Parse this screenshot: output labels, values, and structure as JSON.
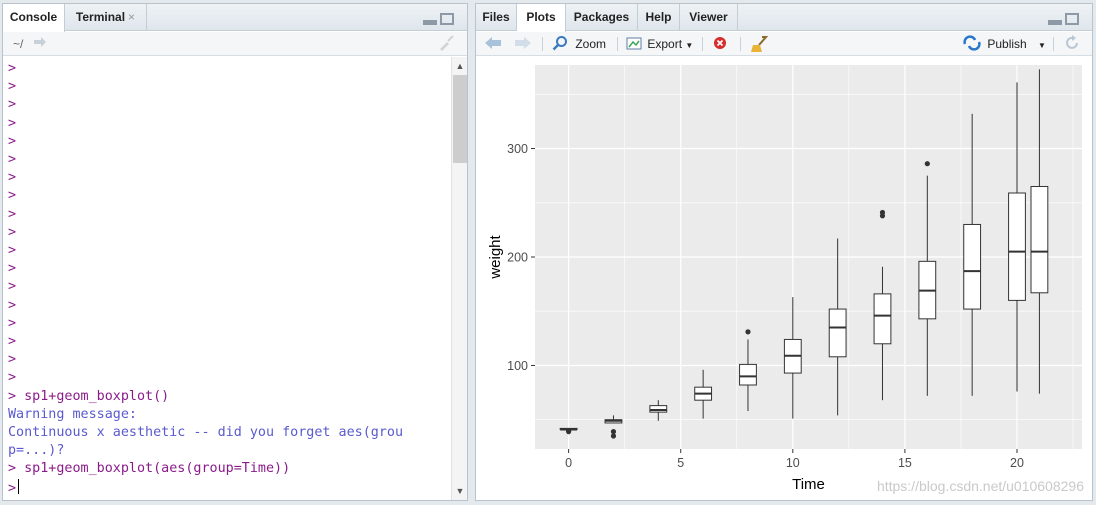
{
  "left_pane": {
    "tabs": [
      {
        "label": "Console"
      },
      {
        "label": "Terminal"
      }
    ],
    "path": "~/",
    "console_lines": [
      {
        "type": "prompt",
        "text": ">"
      },
      {
        "type": "prompt",
        "text": ">"
      },
      {
        "type": "prompt",
        "text": ">"
      },
      {
        "type": "prompt",
        "text": ">"
      },
      {
        "type": "prompt",
        "text": ">"
      },
      {
        "type": "prompt",
        "text": ">"
      },
      {
        "type": "prompt",
        "text": ">"
      },
      {
        "type": "prompt",
        "text": ">"
      },
      {
        "type": "prompt",
        "text": ">"
      },
      {
        "type": "prompt",
        "text": ">"
      },
      {
        "type": "prompt",
        "text": ">"
      },
      {
        "type": "prompt",
        "text": ">"
      },
      {
        "type": "prompt",
        "text": ">"
      },
      {
        "type": "prompt",
        "text": ">"
      },
      {
        "type": "prompt",
        "text": ">"
      },
      {
        "type": "prompt",
        "text": ">"
      },
      {
        "type": "prompt",
        "text": ">"
      },
      {
        "type": "prompt",
        "text": ">"
      },
      {
        "type": "cmd",
        "text": "> sp1+geom_boxplot()"
      },
      {
        "type": "warn",
        "text": "Warning message:"
      },
      {
        "type": "warn",
        "text": "Continuous x aesthetic -- did you forget aes(grou"
      },
      {
        "type": "warn",
        "text": "p=...)?"
      },
      {
        "type": "cmd",
        "text": "> sp1+geom_boxplot(aes(group=Time))"
      },
      {
        "type": "input",
        "text": ">"
      }
    ]
  },
  "right_pane": {
    "tabs": [
      {
        "label": "Files"
      },
      {
        "label": "Plots"
      },
      {
        "label": "Packages"
      },
      {
        "label": "Help"
      },
      {
        "label": "Viewer"
      }
    ],
    "toolbar": {
      "zoom_label": "Zoom",
      "export_label": "Export",
      "publish_label": "Publish"
    },
    "watermark": "https://blog.csdn.net/u010608296"
  },
  "colors": {
    "panel_bg": "#ebebeb",
    "grid": "#ffffff",
    "prompt": "#8a1c8a",
    "warning": "#5a5ad0"
  },
  "chart_data": {
    "type": "box",
    "xlabel": "Time",
    "ylabel": "weight",
    "xlim": [
      -1.5,
      22.9
    ],
    "ylim": [
      23,
      377
    ],
    "x_ticks": [
      0,
      5,
      10,
      15,
      20
    ],
    "y_ticks": [
      100,
      200,
      300
    ],
    "grid": true,
    "boxes": [
      {
        "x": 0,
        "min": 41,
        "q1": 41,
        "median": 41,
        "q3": 42,
        "max": 42,
        "outliers": [
          39,
          40
        ]
      },
      {
        "x": 2,
        "min": 47,
        "q1": 47,
        "median": 49,
        "q3": 50,
        "max": 54,
        "outliers": [
          35,
          39
        ]
      },
      {
        "x": 4,
        "min": 49,
        "q1": 57,
        "median": 59,
        "q3": 63,
        "max": 68,
        "outliers": []
      },
      {
        "x": 6,
        "min": 51,
        "q1": 68,
        "median": 74,
        "q3": 80,
        "max": 96,
        "outliers": []
      },
      {
        "x": 8,
        "min": 58,
        "q1": 82,
        "median": 90,
        "q3": 101,
        "max": 124,
        "outliers": [
          131
        ]
      },
      {
        "x": 10,
        "min": 51,
        "q1": 93,
        "median": 109,
        "q3": 124,
        "max": 163,
        "outliers": []
      },
      {
        "x": 12,
        "min": 54,
        "q1": 108,
        "median": 135,
        "q3": 152,
        "max": 217,
        "outliers": []
      },
      {
        "x": 14,
        "min": 68,
        "q1": 120,
        "median": 146,
        "q3": 166,
        "max": 191,
        "outliers": [
          238,
          241
        ]
      },
      {
        "x": 16,
        "min": 72,
        "q1": 143,
        "median": 169,
        "q3": 196,
        "max": 275,
        "outliers": [
          286
        ]
      },
      {
        "x": 18,
        "min": 72,
        "q1": 152,
        "median": 187,
        "q3": 230,
        "max": 332,
        "outliers": []
      },
      {
        "x": 20,
        "min": 76,
        "q1": 160,
        "median": 205,
        "q3": 259,
        "max": 361,
        "outliers": []
      },
      {
        "x": 21,
        "min": 74,
        "q1": 167,
        "median": 205,
        "q3": 265,
        "max": 373,
        "outliers": []
      }
    ]
  }
}
